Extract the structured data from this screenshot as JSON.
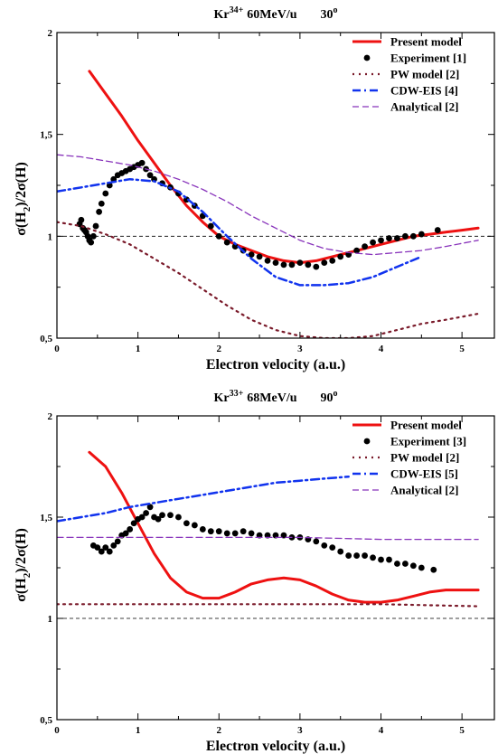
{
  "chart_data": [
    {
      "type": "line",
      "title": {
        "ion": "Kr",
        "charge": "34+",
        "energy": "60MeV/u",
        "angle": "30",
        "angle_unit": "o"
      },
      "xlabel": "Electron velocity (a.u.)",
      "ylabel": {
        "a": "σ(H",
        "sub": "2",
        "b": ")/2σ(H)"
      },
      "xlim": [
        0,
        5.4
      ],
      "ylim": [
        0.5,
        2
      ],
      "xticks": [
        0,
        1,
        2,
        3,
        4,
        5
      ],
      "xtick_labels": [
        "0",
        "1",
        "2",
        "3",
        "4",
        "5"
      ],
      "yticks": [
        0.5,
        1,
        1.5,
        2
      ],
      "ytick_labels": [
        "0,5",
        "1",
        "1,5",
        "2"
      ],
      "reference_line": 1,
      "legend_position": "top-right",
      "series": [
        {
          "name": "Present model",
          "style": "solid",
          "color": "#ee1111",
          "x": [
            0.4,
            0.6,
            0.8,
            1.0,
            1.2,
            1.4,
            1.6,
            1.8,
            2.0,
            2.2,
            2.4,
            2.6,
            2.8,
            3.0,
            3.2,
            3.4,
            3.6,
            3.8,
            4.0,
            4.2,
            4.4,
            4.6,
            4.8,
            5.0,
            5.2
          ],
          "y": [
            1.81,
            1.7,
            1.59,
            1.47,
            1.36,
            1.25,
            1.15,
            1.07,
            1.0,
            0.96,
            0.93,
            0.9,
            0.88,
            0.87,
            0.88,
            0.9,
            0.92,
            0.94,
            0.96,
            0.98,
            1.0,
            1.01,
            1.02,
            1.03,
            1.04
          ]
        },
        {
          "name": "Experiment [1]",
          "style": "points",
          "color": "#000000",
          "x": [
            0.28,
            0.3,
            0.32,
            0.34,
            0.36,
            0.38,
            0.4,
            0.42,
            0.45,
            0.48,
            0.52,
            0.55,
            0.6,
            0.65,
            0.7,
            0.75,
            0.8,
            0.85,
            0.9,
            0.95,
            1.0,
            1.05,
            1.1,
            1.15,
            1.2,
            1.3,
            1.4,
            1.5,
            1.6,
            1.7,
            1.8,
            1.9,
            2.0,
            2.1,
            2.2,
            2.3,
            2.4,
            2.5,
            2.6,
            2.7,
            2.8,
            2.9,
            3.0,
            3.1,
            3.2,
            3.3,
            3.4,
            3.5,
            3.6,
            3.7,
            3.8,
            3.9,
            4.0,
            4.1,
            4.2,
            4.3,
            4.4,
            4.5,
            4.7
          ],
          "y": [
            1.06,
            1.08,
            1.04,
            1.03,
            1.02,
            1.0,
            0.98,
            0.97,
            1.0,
            1.05,
            1.12,
            1.16,
            1.21,
            1.25,
            1.28,
            1.3,
            1.31,
            1.32,
            1.33,
            1.34,
            1.35,
            1.36,
            1.33,
            1.3,
            1.28,
            1.26,
            1.24,
            1.21,
            1.18,
            1.15,
            1.1,
            1.05,
            1.0,
            0.97,
            0.95,
            0.93,
            0.91,
            0.9,
            0.88,
            0.87,
            0.86,
            0.86,
            0.87,
            0.86,
            0.85,
            0.87,
            0.88,
            0.9,
            0.91,
            0.93,
            0.95,
            0.97,
            0.98,
            0.99,
            0.99,
            1.0,
            1.0,
            1.01,
            1.03
          ]
        },
        {
          "name": "PW model [2]",
          "style": "dotted",
          "color": "#7a1a2a",
          "x": [
            0.0,
            0.3,
            0.6,
            0.9,
            1.2,
            1.5,
            1.8,
            2.1,
            2.4,
            2.7,
            3.0,
            3.3,
            3.6,
            3.9,
            4.2,
            4.5,
            4.8,
            5.2
          ],
          "y": [
            1.07,
            1.05,
            1.01,
            0.96,
            0.89,
            0.82,
            0.74,
            0.66,
            0.59,
            0.54,
            0.51,
            0.5,
            0.5,
            0.51,
            0.54,
            0.57,
            0.59,
            0.62
          ]
        },
        {
          "name": "CDW-EIS [4]",
          "style": "dashdot",
          "color": "#1133ee",
          "x": [
            0.0,
            0.3,
            0.6,
            0.9,
            1.2,
            1.5,
            1.8,
            2.1,
            2.4,
            2.7,
            3.0,
            3.3,
            3.6,
            3.9,
            4.2,
            4.5
          ],
          "y": [
            1.22,
            1.24,
            1.26,
            1.28,
            1.27,
            1.22,
            1.12,
            1.0,
            0.89,
            0.8,
            0.76,
            0.76,
            0.77,
            0.8,
            0.85,
            0.9
          ]
        },
        {
          "name": "Analytical [2]",
          "style": "dashed",
          "color": "#8833bb",
          "x": [
            0.0,
            0.3,
            0.6,
            0.9,
            1.2,
            1.5,
            1.8,
            2.1,
            2.4,
            2.7,
            3.0,
            3.3,
            3.6,
            3.9,
            4.2,
            4.5,
            4.8,
            5.2
          ],
          "y": [
            1.4,
            1.39,
            1.37,
            1.35,
            1.32,
            1.28,
            1.23,
            1.17,
            1.1,
            1.04,
            0.98,
            0.94,
            0.92,
            0.91,
            0.92,
            0.93,
            0.95,
            0.98
          ]
        }
      ]
    },
    {
      "type": "line",
      "title": {
        "ion": "Kr",
        "charge": "33+",
        "energy": "68MeV/u",
        "angle": "90",
        "angle_unit": "o"
      },
      "xlabel": "Electron velocity (a.u.)",
      "ylabel": {
        "a": "σ(H",
        "sub": "2",
        "b": ")/2σ(H)"
      },
      "xlim": [
        0,
        5.4
      ],
      "ylim": [
        0.5,
        2
      ],
      "xticks": [
        0,
        1,
        2,
        3,
        4,
        5
      ],
      "xtick_labels": [
        "0",
        "1",
        "2",
        "3",
        "4",
        "5"
      ],
      "yticks": [
        0.5,
        1,
        1.5,
        2
      ],
      "ytick_labels": [
        "0,5",
        "1",
        "1,5",
        "2"
      ],
      "reference_line": 1,
      "legend_position": "top-right",
      "series": [
        {
          "name": "Present model",
          "style": "solid",
          "color": "#ee1111",
          "x": [
            0.4,
            0.6,
            0.8,
            1.0,
            1.2,
            1.4,
            1.6,
            1.8,
            2.0,
            2.2,
            2.4,
            2.6,
            2.8,
            3.0,
            3.2,
            3.4,
            3.6,
            3.8,
            4.0,
            4.2,
            4.4,
            4.6,
            4.8,
            5.0,
            5.2
          ],
          "y": [
            1.82,
            1.75,
            1.62,
            1.47,
            1.32,
            1.2,
            1.13,
            1.1,
            1.1,
            1.13,
            1.17,
            1.19,
            1.2,
            1.19,
            1.16,
            1.12,
            1.09,
            1.08,
            1.08,
            1.09,
            1.11,
            1.13,
            1.14,
            1.14,
            1.14
          ]
        },
        {
          "name": "Experiment [3]",
          "style": "points",
          "color": "#000000",
          "x": [
            0.45,
            0.5,
            0.55,
            0.6,
            0.65,
            0.7,
            0.75,
            0.8,
            0.85,
            0.9,
            0.95,
            1.0,
            1.05,
            1.1,
            1.15,
            1.2,
            1.25,
            1.3,
            1.4,
            1.5,
            1.6,
            1.7,
            1.8,
            1.9,
            2.0,
            2.1,
            2.2,
            2.3,
            2.4,
            2.5,
            2.6,
            2.7,
            2.8,
            2.9,
            3.0,
            3.1,
            3.2,
            3.3,
            3.4,
            3.5,
            3.6,
            3.7,
            3.8,
            3.9,
            4.0,
            4.1,
            4.2,
            4.3,
            4.4,
            4.5,
            4.65
          ],
          "y": [
            1.36,
            1.35,
            1.33,
            1.35,
            1.33,
            1.36,
            1.38,
            1.41,
            1.42,
            1.44,
            1.47,
            1.49,
            1.5,
            1.52,
            1.55,
            1.5,
            1.49,
            1.51,
            1.51,
            1.5,
            1.47,
            1.46,
            1.44,
            1.43,
            1.43,
            1.42,
            1.42,
            1.43,
            1.42,
            1.41,
            1.41,
            1.41,
            1.41,
            1.4,
            1.4,
            1.39,
            1.38,
            1.36,
            1.35,
            1.33,
            1.31,
            1.31,
            1.31,
            1.3,
            1.29,
            1.29,
            1.27,
            1.27,
            1.26,
            1.25,
            1.24
          ]
        },
        {
          "name": "PW model [2]",
          "style": "dotted",
          "color": "#7a1a2a",
          "x": [
            0.0,
            1.0,
            2.0,
            3.0,
            4.0,
            5.2
          ],
          "y": [
            1.07,
            1.07,
            1.07,
            1.07,
            1.07,
            1.06
          ]
        },
        {
          "name": "CDW-EIS [5]",
          "style": "dashdot",
          "color": "#1133ee",
          "x": [
            0.0,
            0.3,
            0.6,
            0.9,
            1.2,
            1.5,
            1.8,
            2.1,
            2.4,
            2.7,
            3.0,
            3.3,
            3.6
          ],
          "y": [
            1.48,
            1.5,
            1.52,
            1.55,
            1.57,
            1.59,
            1.61,
            1.63,
            1.65,
            1.67,
            1.68,
            1.69,
            1.7
          ]
        },
        {
          "name": "Analytical [2]",
          "style": "dashed",
          "color": "#8833bb",
          "x": [
            0.0,
            1.0,
            2.0,
            3.0,
            4.0,
            5.2
          ],
          "y": [
            1.4,
            1.4,
            1.4,
            1.4,
            1.39,
            1.39
          ]
        }
      ]
    }
  ]
}
